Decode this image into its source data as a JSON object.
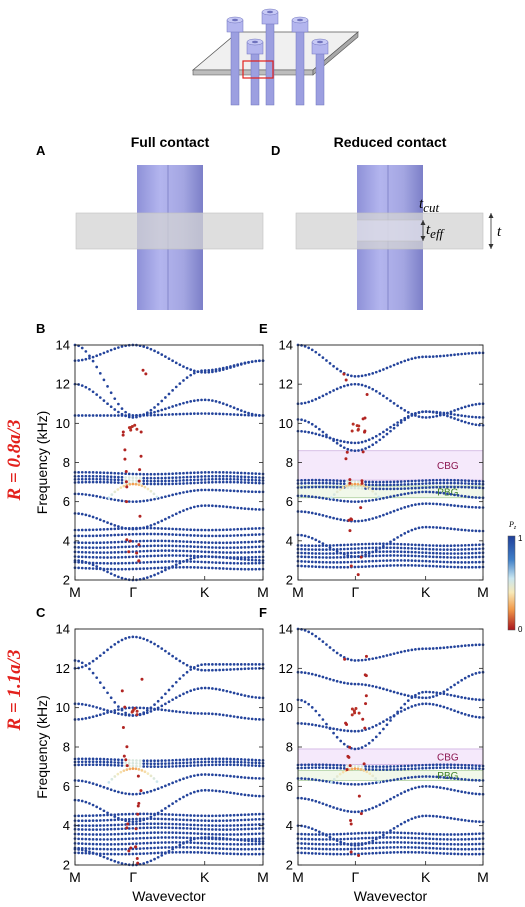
{
  "panels": {
    "A": {
      "letter": "A",
      "title": "Full contact"
    },
    "D": {
      "letter": "D",
      "title": "Reduced contact",
      "labels": {
        "t_cut": "cut",
        "t_eff": "eff",
        "t": "t",
        "t_sym": "t"
      }
    },
    "B": {
      "letter": "B"
    },
    "C": {
      "letter": "C"
    },
    "E": {
      "letter": "E"
    },
    "F": {
      "letter": "F"
    }
  },
  "rows": {
    "top": {
      "r_label": "R = 0.8a/3"
    },
    "bottom": {
      "r_label": "R = 1.1a/3"
    }
  },
  "axes": {
    "ylabel": "Frequency (kHz)",
    "xlabel": "Wavevector",
    "xticks": [
      "M",
      "Γ",
      "K",
      "M"
    ],
    "yticks": [
      2,
      4,
      6,
      8,
      10,
      12,
      14
    ],
    "ylim": [
      2,
      14
    ]
  },
  "colorbar": {
    "label": "P",
    "sub": "z",
    "max": "1",
    "min": "0"
  },
  "colors": {
    "cylinder": "#a9abe6",
    "plate": "#d3d3d3",
    "cbg_fill": "#f5e9fb",
    "cbg_border": "#c9a6dd",
    "pbg_fill": "#f1f8ea",
    "pbg_border": "#a4c992",
    "band_blue": "#24449c",
    "title_red": "#e3211c",
    "gap_label_magenta": "#8b1650",
    "gap_label_green": "#3a7d22"
  },
  "chart_data": [
    {
      "panel": "B",
      "type": "scatter",
      "title": "",
      "xlabel": "",
      "ylabel": "Frequency (kHz)",
      "ylim": [
        2,
        14
      ],
      "x_ticks": [
        "M",
        "Γ",
        "K",
        "M"
      ],
      "gaps": []
    },
    {
      "panel": "C",
      "type": "scatter",
      "title": "",
      "xlabel": "Wavevector",
      "ylabel": "Frequency (kHz)",
      "ylim": [
        2,
        14
      ],
      "x_ticks": [
        "M",
        "Γ",
        "K",
        "M"
      ],
      "gaps": []
    },
    {
      "panel": "E",
      "type": "scatter",
      "title": "",
      "xlabel": "",
      "ylabel": "",
      "ylim": [
        2,
        14
      ],
      "x_ticks": [
        "M",
        "Γ",
        "K",
        "M"
      ],
      "gaps": [
        {
          "label": "CBG",
          "range": [
            7.1,
            8.6
          ]
        },
        {
          "label": "PBG",
          "range": [
            6.2,
            6.8
          ]
        }
      ]
    },
    {
      "panel": "F",
      "type": "scatter",
      "title": "",
      "xlabel": "Wavevector",
      "ylabel": "",
      "ylim": [
        2,
        14
      ],
      "x_ticks": [
        "M",
        "Γ",
        "K",
        "M"
      ],
      "gaps": [
        {
          "label": "CBG",
          "range": [
            7.1,
            7.9
          ]
        },
        {
          "label": "PBG",
          "range": [
            6.3,
            6.8
          ]
        }
      ]
    }
  ]
}
